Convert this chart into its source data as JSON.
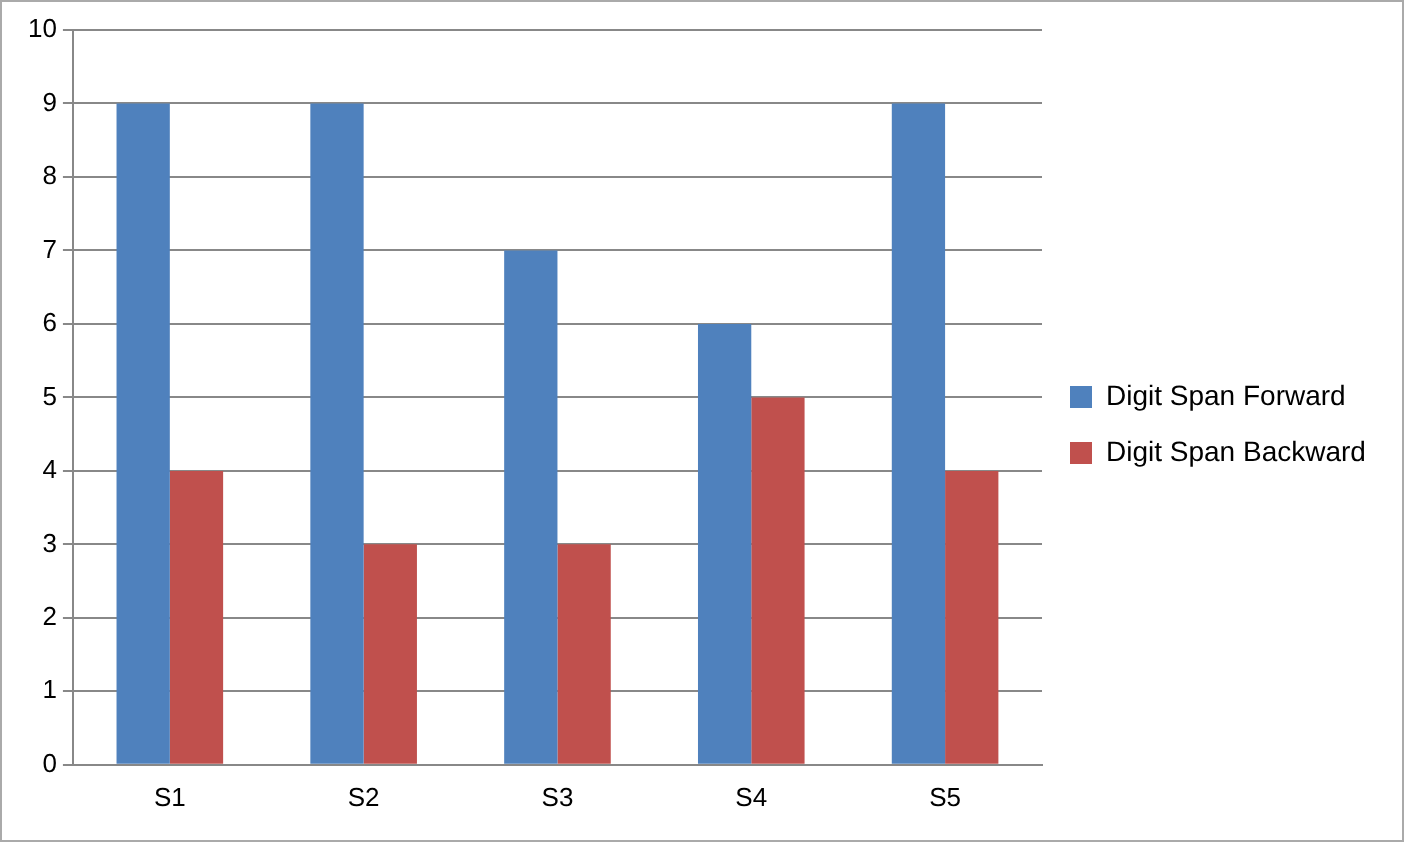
{
  "chart_data": {
    "type": "bar",
    "categories": [
      "S1",
      "S2",
      "S3",
      "S4",
      "S5"
    ],
    "series": [
      {
        "name": "Digit Span Forward",
        "color": "#4f81bd",
        "values": [
          9,
          9,
          7,
          6,
          9
        ]
      },
      {
        "name": "Digit Span Backward",
        "color": "#c0504d",
        "values": [
          4,
          3,
          3,
          5,
          4
        ]
      }
    ],
    "ylim": [
      0,
      10
    ],
    "yticks": [
      0,
      1,
      2,
      3,
      4,
      5,
      6,
      7,
      8,
      9,
      10
    ],
    "grid": "y",
    "legend": "right"
  }
}
